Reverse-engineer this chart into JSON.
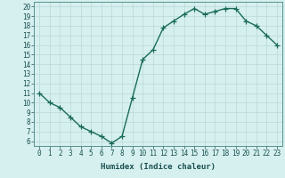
{
  "x": [
    0,
    1,
    2,
    3,
    4,
    5,
    6,
    7,
    8,
    9,
    10,
    11,
    12,
    13,
    14,
    15,
    16,
    17,
    18,
    19,
    20,
    21,
    22,
    23
  ],
  "y": [
    11,
    10,
    9.5,
    8.5,
    7.5,
    7,
    6.5,
    5.8,
    6.5,
    10.5,
    14.5,
    15.5,
    17.8,
    18.5,
    19.2,
    19.8,
    19.2,
    19.5,
    19.8,
    19.8,
    18.5,
    18.0,
    17.0,
    16.0
  ],
  "line_color": "#1a6b5a",
  "marker": "+",
  "marker_size": 4,
  "bg_color": "#d6f0ef",
  "grid_color": "#b8d8d4",
  "xlabel": "Humidex (Indice chaleur)",
  "ylim": [
    5.5,
    20.5
  ],
  "xlim": [
    -0.5,
    23.5
  ],
  "yticks": [
    6,
    7,
    8,
    9,
    10,
    11,
    12,
    13,
    14,
    15,
    16,
    17,
    18,
    19,
    20
  ],
  "xticks": [
    0,
    1,
    2,
    3,
    4,
    5,
    6,
    7,
    8,
    9,
    10,
    11,
    12,
    13,
    14,
    15,
    16,
    17,
    18,
    19,
    20,
    21,
    22,
    23
  ],
  "tick_label_fontsize": 5.5,
  "xlabel_fontsize": 6.5,
  "line_width": 1.0,
  "markeredgewidth": 0.9
}
